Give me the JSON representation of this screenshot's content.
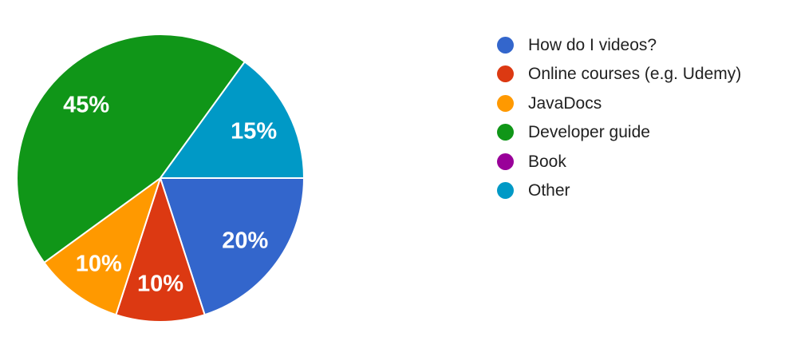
{
  "chart_data": {
    "type": "pie",
    "title": "",
    "legend_position": "right",
    "background_color": "#ffffff",
    "slice_label_color": "#ffffff",
    "legend_text_color": "#212121",
    "start_angle": "3-o-clock, clockwise",
    "slices": [
      {
        "label": "How do I videos?",
        "value": 20,
        "pct_label": "20%",
        "color": "#3366CC"
      },
      {
        "label": "Online courses (e.g. Udemy)",
        "value": 10,
        "pct_label": "10%",
        "color": "#DC3912"
      },
      {
        "label": "JavaDocs",
        "value": 10,
        "pct_label": "10%",
        "color": "#FF9900"
      },
      {
        "label": "Developer guide",
        "value": 45,
        "pct_label": "45%",
        "color": "#109618"
      },
      {
        "label": "Book",
        "value": 0,
        "pct_label": "",
        "color": "#990099"
      },
      {
        "label": "Other",
        "value": 15,
        "pct_label": "15%",
        "color": "#0099C6"
      }
    ]
  }
}
